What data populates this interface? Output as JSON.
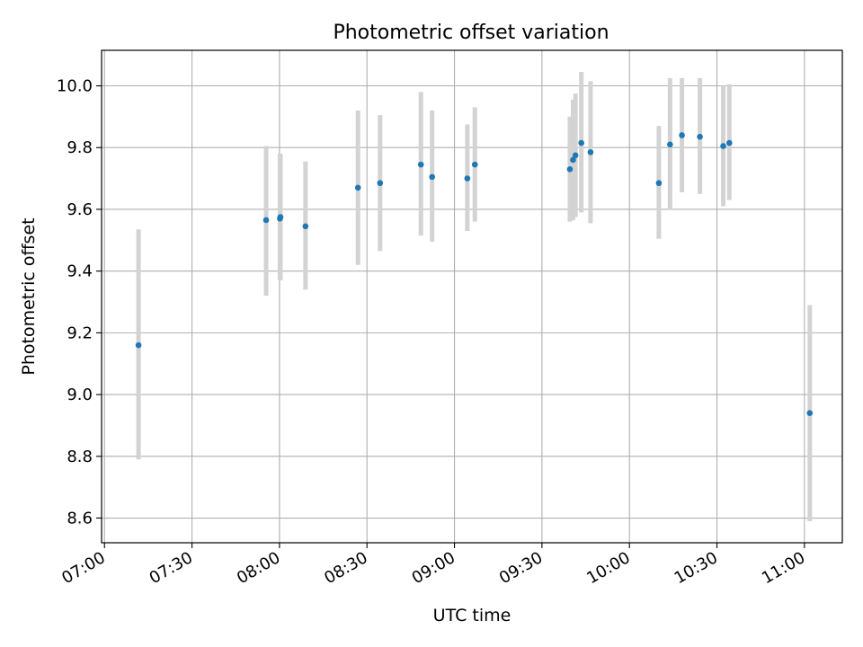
{
  "chart_data": {
    "type": "scatter",
    "title": "Photometric offset variation",
    "xlabel": "UTC time",
    "ylabel": "Photometric offset",
    "x_axis_kind": "time",
    "xlim": [
      "06:59",
      "11:13"
    ],
    "ylim": [
      8.52,
      10.115
    ],
    "xticks": [
      "07:00",
      "07:30",
      "08:00",
      "08:30",
      "09:00",
      "09:30",
      "10:00",
      "10:30",
      "11:00"
    ],
    "yticks": [
      "8.6",
      "8.8",
      "9.0",
      "9.2",
      "9.4",
      "9.6",
      "9.8",
      "10.0"
    ],
    "grid": true,
    "errorbar_color": "#d3d3d3",
    "marker_color": "#1f77b4",
    "series": [
      {
        "points": [
          {
            "x": "07:11:40",
            "y": 9.16,
            "ylow": 8.79,
            "yhigh": 9.535
          },
          {
            "x": "07:55:25",
            "y": 9.565,
            "ylow": 9.32,
            "yhigh": 9.805
          },
          {
            "x": "08:00:10",
            "y": 9.57,
            "ylow": 9.37,
            "yhigh": 9.78
          },
          {
            "x": "08:00:20",
            "y": 9.575,
            "ylow": 9.37,
            "yhigh": 9.78
          },
          {
            "x": "08:08:55",
            "y": 9.545,
            "ylow": 9.34,
            "yhigh": 9.755
          },
          {
            "x": "08:26:55",
            "y": 9.67,
            "ylow": 9.42,
            "yhigh": 9.92
          },
          {
            "x": "08:34:30",
            "y": 9.685,
            "ylow": 9.465,
            "yhigh": 9.905
          },
          {
            "x": "08:48:30",
            "y": 9.745,
            "ylow": 9.515,
            "yhigh": 9.98
          },
          {
            "x": "08:52:20",
            "y": 9.705,
            "ylow": 9.495,
            "yhigh": 9.92
          },
          {
            "x": "09:04:25",
            "y": 9.7,
            "ylow": 9.53,
            "yhigh": 9.875
          },
          {
            "x": "09:07:00",
            "y": 9.745,
            "ylow": 9.56,
            "yhigh": 9.93
          },
          {
            "x": "09:39:35",
            "y": 9.73,
            "ylow": 9.56,
            "yhigh": 9.9
          },
          {
            "x": "09:40:40",
            "y": 9.76,
            "ylow": 9.565,
            "yhigh": 9.955
          },
          {
            "x": "09:41:30",
            "y": 9.775,
            "ylow": 9.575,
            "yhigh": 9.975
          },
          {
            "x": "09:43:30",
            "y": 9.815,
            "ylow": 9.59,
            "yhigh": 10.045
          },
          {
            "x": "09:46:40",
            "y": 9.785,
            "ylow": 9.555,
            "yhigh": 10.015
          },
          {
            "x": "10:10:05",
            "y": 9.685,
            "ylow": 9.505,
            "yhigh": 9.87
          },
          {
            "x": "10:13:55",
            "y": 9.81,
            "ylow": 9.6,
            "yhigh": 10.025
          },
          {
            "x": "10:18:00",
            "y": 9.84,
            "ylow": 9.655,
            "yhigh": 10.025
          },
          {
            "x": "10:24:10",
            "y": 9.835,
            "ylow": 9.65,
            "yhigh": 10.025
          },
          {
            "x": "10:32:10",
            "y": 9.805,
            "ylow": 9.61,
            "yhigh": 10.0
          },
          {
            "x": "10:34:15",
            "y": 9.815,
            "ylow": 9.63,
            "yhigh": 10.005
          },
          {
            "x": "11:01:50",
            "y": 8.94,
            "ylow": 8.59,
            "yhigh": 9.29
          }
        ]
      }
    ]
  }
}
